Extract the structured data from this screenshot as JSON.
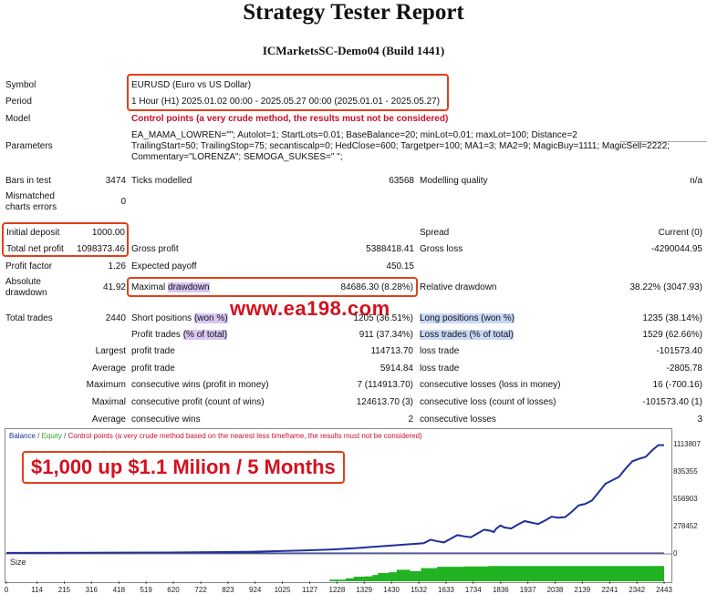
{
  "header": {
    "title": "Strategy Tester Report",
    "server": "ICMarketsSC-Demo04 (Build 1441)"
  },
  "settings": {
    "symbol_label": "Symbol",
    "symbol_value": "EURUSD (Euro vs US Dollar)",
    "period_label": "Period",
    "period_value": "1 Hour (H1) 2025.01.02 00:00 - 2025.05.27 00:00 (2025.01.01 - 2025.05.27)",
    "model_label": "Model",
    "model_value": "Control points (a very crude method, the results must not be considered)",
    "params_label": "Parameters",
    "params_line1": "EA_MAMA_LOWREN=\"\"; Autolot=1; StartLots=0.01; BaseBalance=20; minLot=0.01; maxLot=100; Distance=2",
    "params_line2": "TrailingStart=50; TrailingStop=75; secantiscalp=0; HedClose=600; Targetper=100; MA1=3; MA2=9; MagicBuy=1111; MagicSell=2222;",
    "params_line3": "Commentary=\"LORENZA\"; SEMOGA_SUKSES=\" \";"
  },
  "stats": {
    "bars_label": "Bars in test",
    "bars_value": "3474",
    "ticks_label": "Ticks modelled",
    "ticks_value": "63568",
    "quality_label": "Modelling quality",
    "quality_value": "n/a",
    "mismatch_label_1": "Mismatched",
    "mismatch_label_2": "charts errors",
    "mismatch_value": "0",
    "deposit_label": "Initial deposit",
    "deposit_value": "1000.00",
    "spread_label": "Spread",
    "spread_value": "Current (0)",
    "netprofit_label": "Total net profit",
    "netprofit_value": "1098373.46",
    "grossprofit_label": "Gross profit",
    "grossprofit_value": "5388418.41",
    "grossloss_label": "Gross loss",
    "grossloss_value": "-4290044.95",
    "pf_label": "Profit factor",
    "pf_value": "1.26",
    "payoff_label": "Expected payoff",
    "payoff_value": "450.15",
    "absdd_label_1": "Absolute",
    "absdd_label_2": "drawdown",
    "absdd_value": "41.92",
    "maxdd_label_1": "Maximal ",
    "maxdd_label_2": "drawdown",
    "maxdd_value": "84686.30 (8.28%)",
    "reldd_label": "Relative drawdown",
    "reldd_value": "38.22% (3047.93)",
    "trades_label": "Total trades",
    "trades_value": "2440",
    "short_label_1": "Short positions ",
    "short_label_2": "(won %)",
    "short_value": "1205 (36.51%)",
    "long_label_1": "Long positions ",
    "long_label_2": "(won %)",
    "long_value": "1235 (38.14%)",
    "profittrades_label_1": "Profit trades ",
    "profittrades_label_2": "(% of total)",
    "profittrades_value": "911 (37.34%)",
    "losstrades_label": "Loss trades (% of total)",
    "losstrades_value": "1529 (62.66%)",
    "largest_label": "Largest",
    "largest_profit_label": "profit trade",
    "largest_profit_value": "114713.70",
    "largest_loss_label": "loss trade",
    "largest_loss_value": "-101573.40",
    "average_label": "Average",
    "average_profit_label": "profit trade",
    "average_profit_value": "5914.84",
    "average_loss_label": "loss trade",
    "average_loss_value": "-2805.78",
    "maximum_label": "Maximum",
    "maxconswins_label": "consecutive wins (profit in money)",
    "maxconswins_value": "7 (114913.70)",
    "maxconslosses_label": "consecutive losses (loss in money)",
    "maxconslosses_value": "16 (-700.16)",
    "maximal_label": "Maximal",
    "maximalprofit_label": "consecutive profit (count of wins)",
    "maximalprofit_value": "124613.70 (3)",
    "maximalloss_label": "consecutive loss (count of losses)",
    "maximalloss_value": "-101573.40 (1)",
    "avg2_label": "Average",
    "avgwins_label": "consecutive wins",
    "avgwins_value": "2",
    "avglosses_label": "consecutive losses",
    "avglosses_value": "3"
  },
  "overlay": {
    "watermark": "www.ea198.com",
    "banner": "$1,000 up $1.1 Milion / 5 Months"
  },
  "legend": {
    "balance": "Balance",
    "sep1": " / ",
    "equity": "Equity",
    "sep2": " / ",
    "control": "Control points (a very crude method based on the nearest less timeframe, the results must not be considered)"
  },
  "size_label": "Size",
  "colors": {
    "balance": "#1f2f9a",
    "equity": "#2aa52a",
    "size_bars": "#22b322",
    "highlight_box": "#e0401a",
    "red_text": "#c8102e"
  },
  "chart_data": {
    "type": "line",
    "y_ticks": [
      "1113807",
      "835355",
      "556903",
      "278452",
      "0"
    ],
    "x_ticks": [
      "0",
      "114",
      "215",
      "316",
      "418",
      "519",
      "620",
      "722",
      "823",
      "924",
      "1025",
      "1127",
      "1228",
      "1329",
      "1430",
      "1532",
      "1633",
      "1734",
      "1836",
      "1937",
      "2038",
      "2139",
      "2241",
      "2342",
      "2443"
    ],
    "ylim": [
      0,
      1113807
    ],
    "xlim": [
      0,
      2443
    ],
    "series": [
      {
        "name": "Balance",
        "x": [
          0,
          300,
          600,
          900,
          1000,
          1100,
          1200,
          1300,
          1350,
          1450,
          1550,
          1600,
          1650,
          1700,
          1750,
          1800,
          1820,
          1850,
          1900,
          1950,
          2000,
          2050,
          2100,
          2150,
          2200,
          2250,
          2300,
          2350,
          2400,
          2443
        ],
        "y": [
          1000,
          2000,
          5000,
          12000,
          18000,
          25000,
          35000,
          50000,
          60000,
          80000,
          100000,
          120000,
          145000,
          170000,
          200000,
          225000,
          250000,
          260000,
          290000,
          310000,
          330000,
          360000,
          420000,
          500000,
          620000,
          740000,
          860000,
          960000,
          1050000,
          1098373
        ]
      }
    ],
    "size_steps": {
      "x": [
        0,
        1200,
        1260,
        1290,
        1330,
        1360,
        1380,
        1420,
        1450,
        1500,
        1540,
        1600,
        1700,
        1790,
        2443
      ],
      "y": [
        0,
        0.1,
        0.18,
        0.28,
        0.3,
        0.38,
        0.5,
        0.55,
        0.7,
        0.62,
        0.8,
        0.88,
        0.9,
        0.93,
        0.93
      ]
    }
  }
}
